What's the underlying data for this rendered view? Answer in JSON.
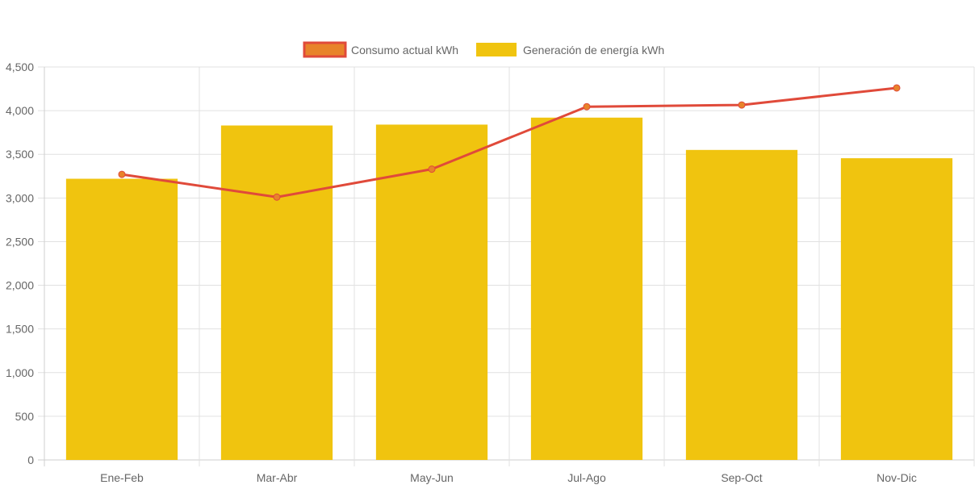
{
  "colors": {
    "bar_fill": "#f0c40f",
    "line_stroke": "#e04a3a",
    "point_fill": "#e8832a",
    "grid": "#e1e1e1",
    "tick_text": "#666666"
  },
  "chart_data": {
    "type": "bar",
    "categories": [
      "Ene-Feb",
      "Mar-Abr",
      "May-Jun",
      "Jul-Ago",
      "Sep-Oct",
      "Nov-Dic"
    ],
    "series": [
      {
        "name": "Consumo actual kWh",
        "type": "line",
        "values": [
          3270,
          3010,
          3330,
          4045,
          4065,
          4260
        ]
      },
      {
        "name": "Generación de energía kWh",
        "type": "bar",
        "values": [
          3220,
          3830,
          3840,
          3920,
          3550,
          3455
        ]
      }
    ],
    "ylim": [
      0,
      4500
    ],
    "yticks": [
      "0",
      "500",
      "1,000",
      "1,500",
      "2,000",
      "2,500",
      "3,000",
      "3,500",
      "4,000",
      "4,500"
    ],
    "grid": true,
    "legend_position": "top-center"
  }
}
